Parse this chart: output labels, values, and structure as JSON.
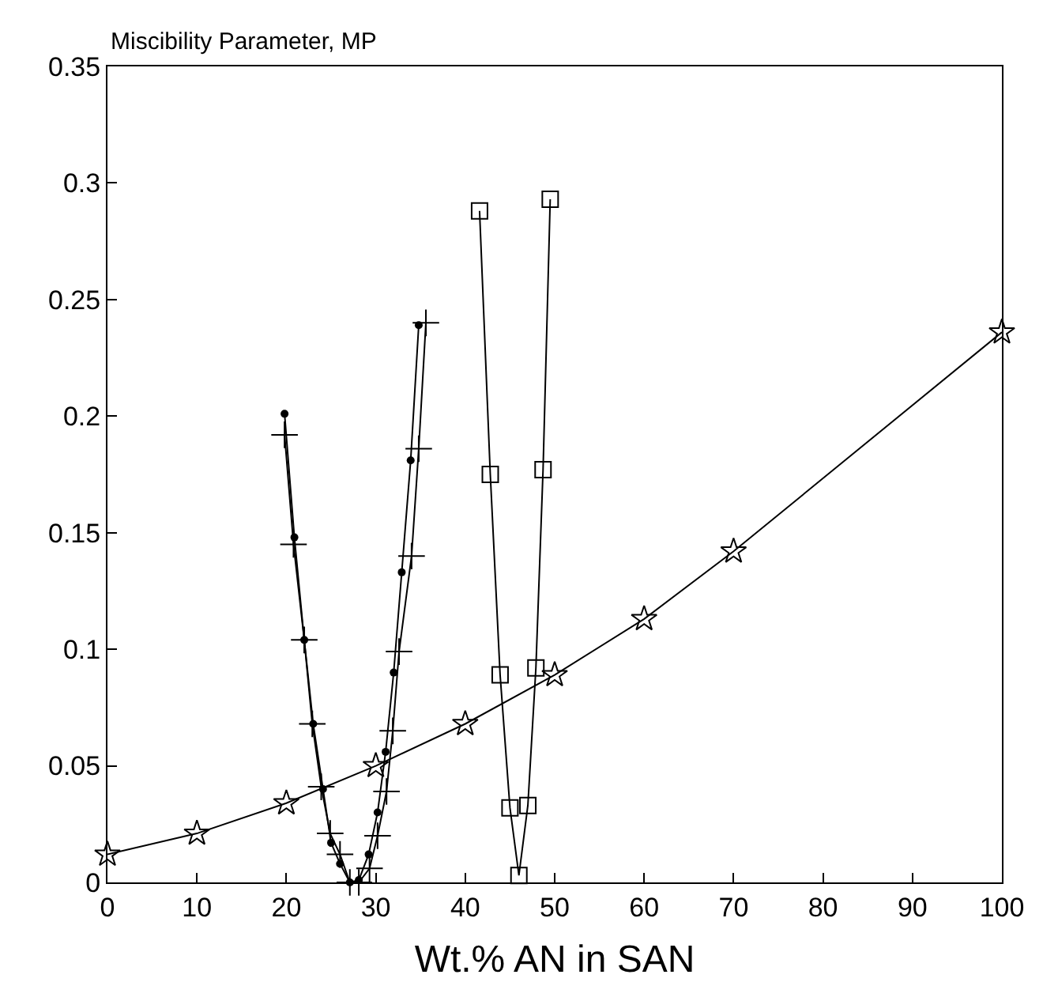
{
  "chart_data": {
    "type": "line",
    "ylabel": "Miscibility Parameter, MP",
    "xlabel": "Wt.% AN in SAN",
    "xlim": [
      0,
      100
    ],
    "xticks": [
      0,
      10,
      20,
      30,
      40,
      50,
      60,
      70,
      80,
      90,
      100
    ],
    "ylim": [
      0,
      0.35
    ],
    "yticks": [
      0,
      0.05,
      0.1,
      0.15,
      0.2,
      0.25,
      0.3,
      0.35
    ],
    "line_style": "solid",
    "series": [
      {
        "color": "#000000",
        "marker": "circle",
        "x": [
          19.8,
          20.9,
          22.0,
          23.0,
          24.1,
          25.0,
          26.0,
          27.1,
          28.1,
          29.2,
          30.2,
          31.1,
          32.0,
          32.9,
          33.9,
          34.8
        ],
        "values": [
          0.201,
          0.148,
          0.104,
          0.068,
          0.04,
          0.017,
          0.008,
          0.0,
          0.001,
          0.012,
          0.03,
          0.056,
          0.09,
          0.133,
          0.181,
          0.239
        ]
      },
      {
        "color": "#000000",
        "marker": "cross",
        "x": [
          19.8,
          20.8,
          22.0,
          22.9,
          23.9,
          24.9,
          26.0,
          27.1,
          28.1,
          29.3,
          30.2,
          31.2,
          31.9,
          32.6,
          34.0,
          34.8,
          35.6
        ],
        "values": [
          0.192,
          0.145,
          0.104,
          0.068,
          0.041,
          0.021,
          0.012,
          0.0,
          0.0,
          0.006,
          0.02,
          0.039,
          0.065,
          0.099,
          0.14,
          0.186,
          0.24
        ]
      },
      {
        "color": "#000000",
        "marker": "square",
        "x": [
          41.6,
          42.8,
          43.9,
          45.0,
          46.0,
          47.0,
          47.9,
          48.7,
          49.5
        ],
        "values": [
          0.288,
          0.175,
          0.089,
          0.032,
          0.003,
          0.033,
          0.092,
          0.177,
          0.293
        ]
      },
      {
        "color": "#000000",
        "marker": "star",
        "x": [
          0,
          10,
          20,
          30,
          40,
          50,
          60,
          70,
          100
        ],
        "values": [
          0.012,
          0.021,
          0.034,
          0.05,
          0.068,
          0.089,
          0.113,
          0.142,
          0.236
        ]
      }
    ]
  }
}
